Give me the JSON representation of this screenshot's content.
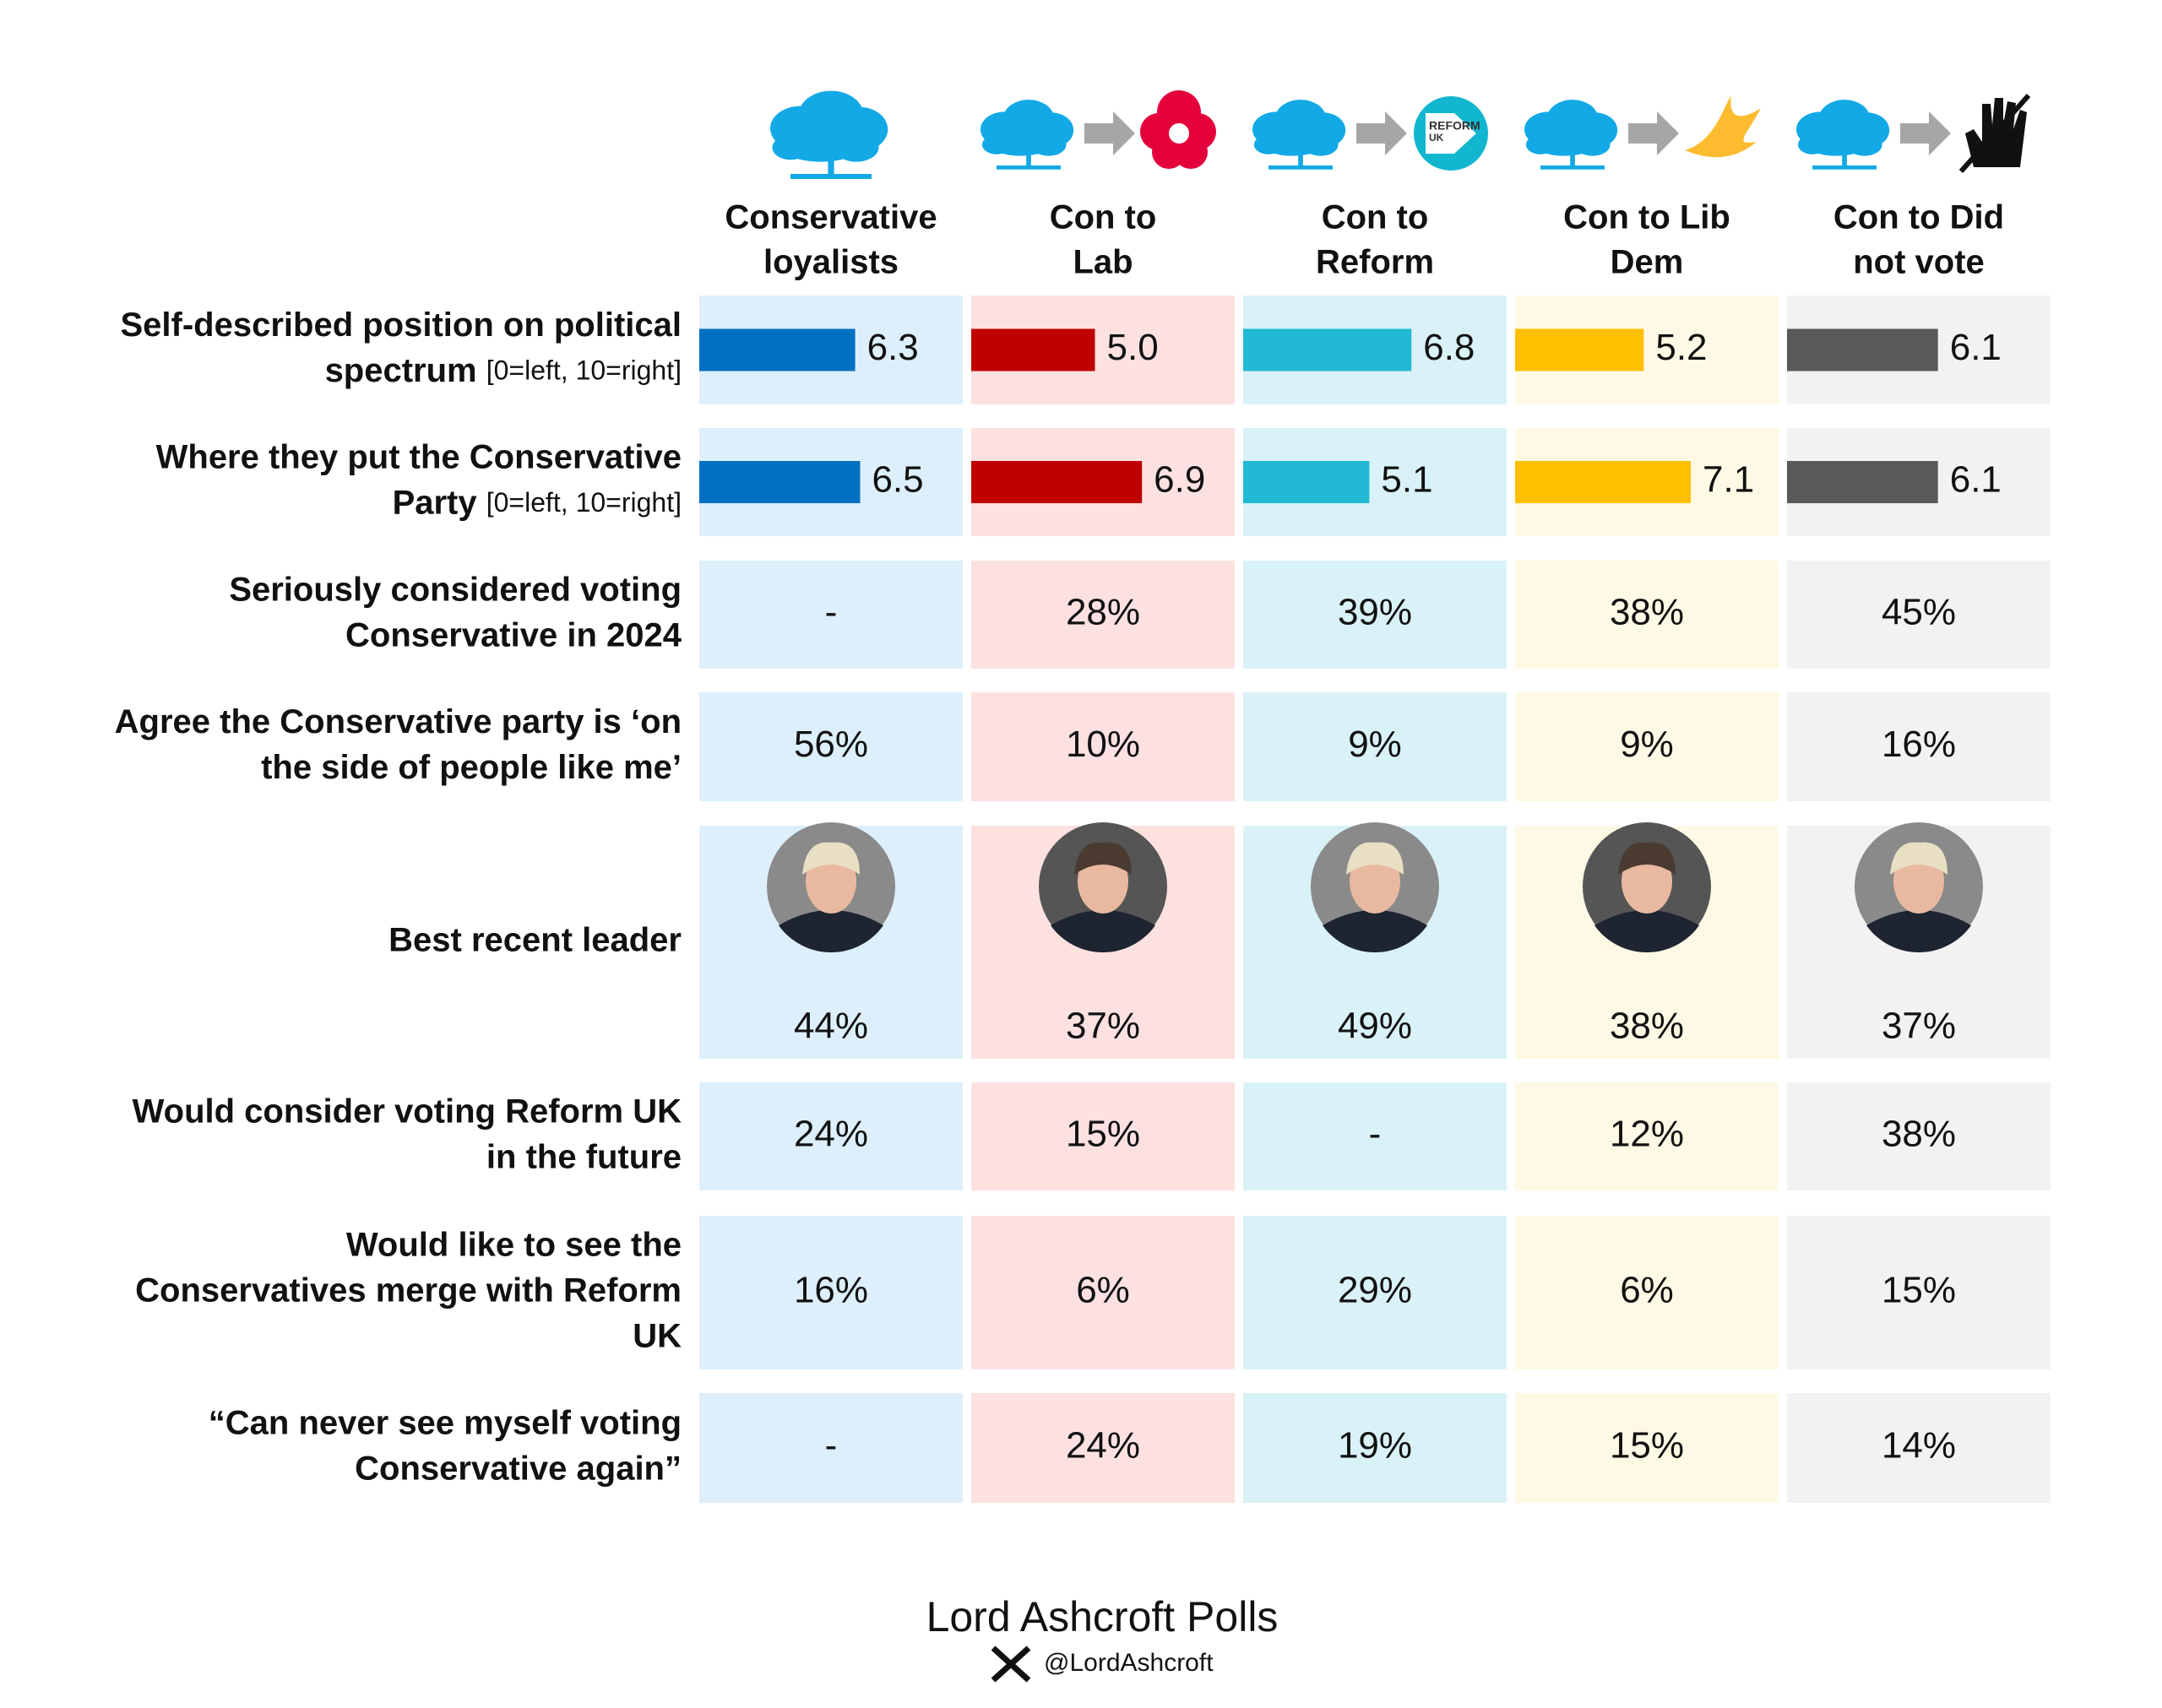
{
  "columns": [
    {
      "label": [
        "Conservative",
        "loyalists"
      ],
      "bg": "#ddeffb",
      "bar_color": "#0070c0"
    },
    {
      "label": [
        "Con to",
        "Lab"
      ],
      "bg": "#fde1e1",
      "bar_color": "#c00000"
    },
    {
      "label": [
        "Con to",
        "Reform"
      ],
      "bg": "#d9f2f7",
      "bar_color": "#21b9d3"
    },
    {
      "label": [
        "Con to Lib",
        "Dem"
      ],
      "bg": "#fef9e5",
      "bar_color": "#ffc000"
    },
    {
      "label": [
        "Con to Did",
        "not vote"
      ],
      "bg": "#f2f2f2",
      "bar_color": "#595959"
    }
  ],
  "reform_logo": [
    "REFORM",
    "UK"
  ],
  "rows": [
    {
      "label": [
        "Self-described position on political",
        "spectrum"
      ],
      "note": "[0=left, 10=right]",
      "bars": [
        6.3,
        5.0,
        6.8,
        5.2,
        6.1
      ],
      "bar_labels": [
        "6.3",
        "5.0",
        "6.8",
        "5.2",
        "6.1"
      ]
    },
    {
      "label": [
        "Where they put the Conservative",
        "Party"
      ],
      "note": "[0=left, 10=right]",
      "bars": [
        6.5,
        6.9,
        5.1,
        7.1,
        6.1
      ],
      "bar_labels": [
        "6.5",
        "6.9",
        "5.1",
        "7.1",
        "6.1"
      ]
    },
    {
      "label": [
        "Seriously considered voting",
        "Conservative in 2024"
      ],
      "cells": [
        "-",
        "28%",
        "39%",
        "38%",
        "45%"
      ]
    },
    {
      "label": [
        "Agree the Conservative party is ‘on",
        "the side of people like me’"
      ],
      "cells": [
        "56%",
        "10%",
        "9%",
        "9%",
        "16%"
      ]
    },
    {
      "label": [
        "Best recent leader"
      ],
      "cells": [
        "44%",
        "37%",
        "49%",
        "38%",
        "37%"
      ]
    },
    {
      "label": [
        "Would consider voting Reform UK",
        "in the future"
      ],
      "cells": [
        "24%",
        "15%",
        "-",
        "12%",
        "38%"
      ]
    },
    {
      "label": [
        "Would like to see the",
        "Conservatives merge with Reform",
        "UK"
      ],
      "cells": [
        "16%",
        "6%",
        "29%",
        "6%",
        "15%"
      ]
    },
    {
      "label": [
        "“Can never see myself voting",
        "Conservative again”"
      ],
      "cells": [
        "-",
        "24%",
        "19%",
        "15%",
        "14%"
      ]
    }
  ],
  "footer": {
    "title": "Lord Ashcroft Polls",
    "handle": "@LordAshcroft"
  }
}
